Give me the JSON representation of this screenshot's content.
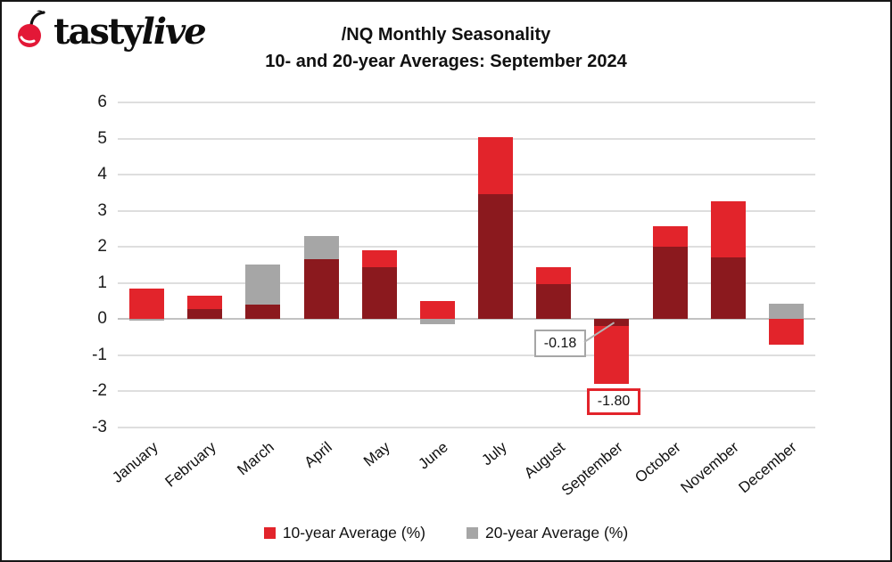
{
  "header": {
    "brand_first": "tasty",
    "brand_second": "live",
    "title_line1": "/NQ Monthly Seasonality",
    "title_line2": "10- and 20-year Averages: September 2024"
  },
  "legend": [
    {
      "label": "10-year Average (%)",
      "color": "#e2242b"
    },
    {
      "label": "20-year Average (%)",
      "color": "#a6a6a6"
    }
  ],
  "annotations": {
    "september_20yr_label": "-0.18",
    "september_10yr_label": "-1.80"
  },
  "colors": {
    "red_10yr": "#e2242b",
    "gray_20yr": "#a6a6a6",
    "overlap_dark_red": "#8b191e",
    "brand_cherry_red": "#e31837",
    "gridline": "#dedede"
  },
  "chart_data": {
    "type": "bar",
    "subtype": "overlapped-bars",
    "title": "/NQ Monthly Seasonality 10- and 20-year Averages: September 2024",
    "categories": [
      "January",
      "February",
      "March",
      "April",
      "May",
      "June",
      "July",
      "August",
      "September",
      "October",
      "November",
      "December"
    ],
    "series": [
      {
        "name": "10-year Average (%)",
        "color": "#e2242b",
        "values": [
          0.85,
          0.65,
          0.4,
          1.65,
          1.9,
          0.5,
          5.05,
          1.45,
          -1.8,
          2.57,
          3.27,
          -0.7
        ]
      },
      {
        "name": "20-year Average (%)",
        "color": "#a6a6a6",
        "values": [
          -0.05,
          0.28,
          1.52,
          2.3,
          1.43,
          -0.15,
          3.47,
          0.98,
          -0.18,
          2.0,
          1.7,
          0.42
        ]
      }
    ],
    "overlap_color": "#8b191e",
    "xlabel": "",
    "ylabel": "",
    "ylim": [
      -3,
      6
    ],
    "yticks": [
      6,
      5,
      4,
      3,
      2,
      1,
      0,
      -1,
      -2,
      -3
    ],
    "grid": true,
    "legend_position": "bottom",
    "annotations": [
      {
        "category": "September",
        "series": "20-year Average (%)",
        "value": -0.18,
        "text": "-0.18"
      },
      {
        "category": "September",
        "series": "10-year Average (%)",
        "value": -1.8,
        "text": "-1.80"
      }
    ]
  }
}
